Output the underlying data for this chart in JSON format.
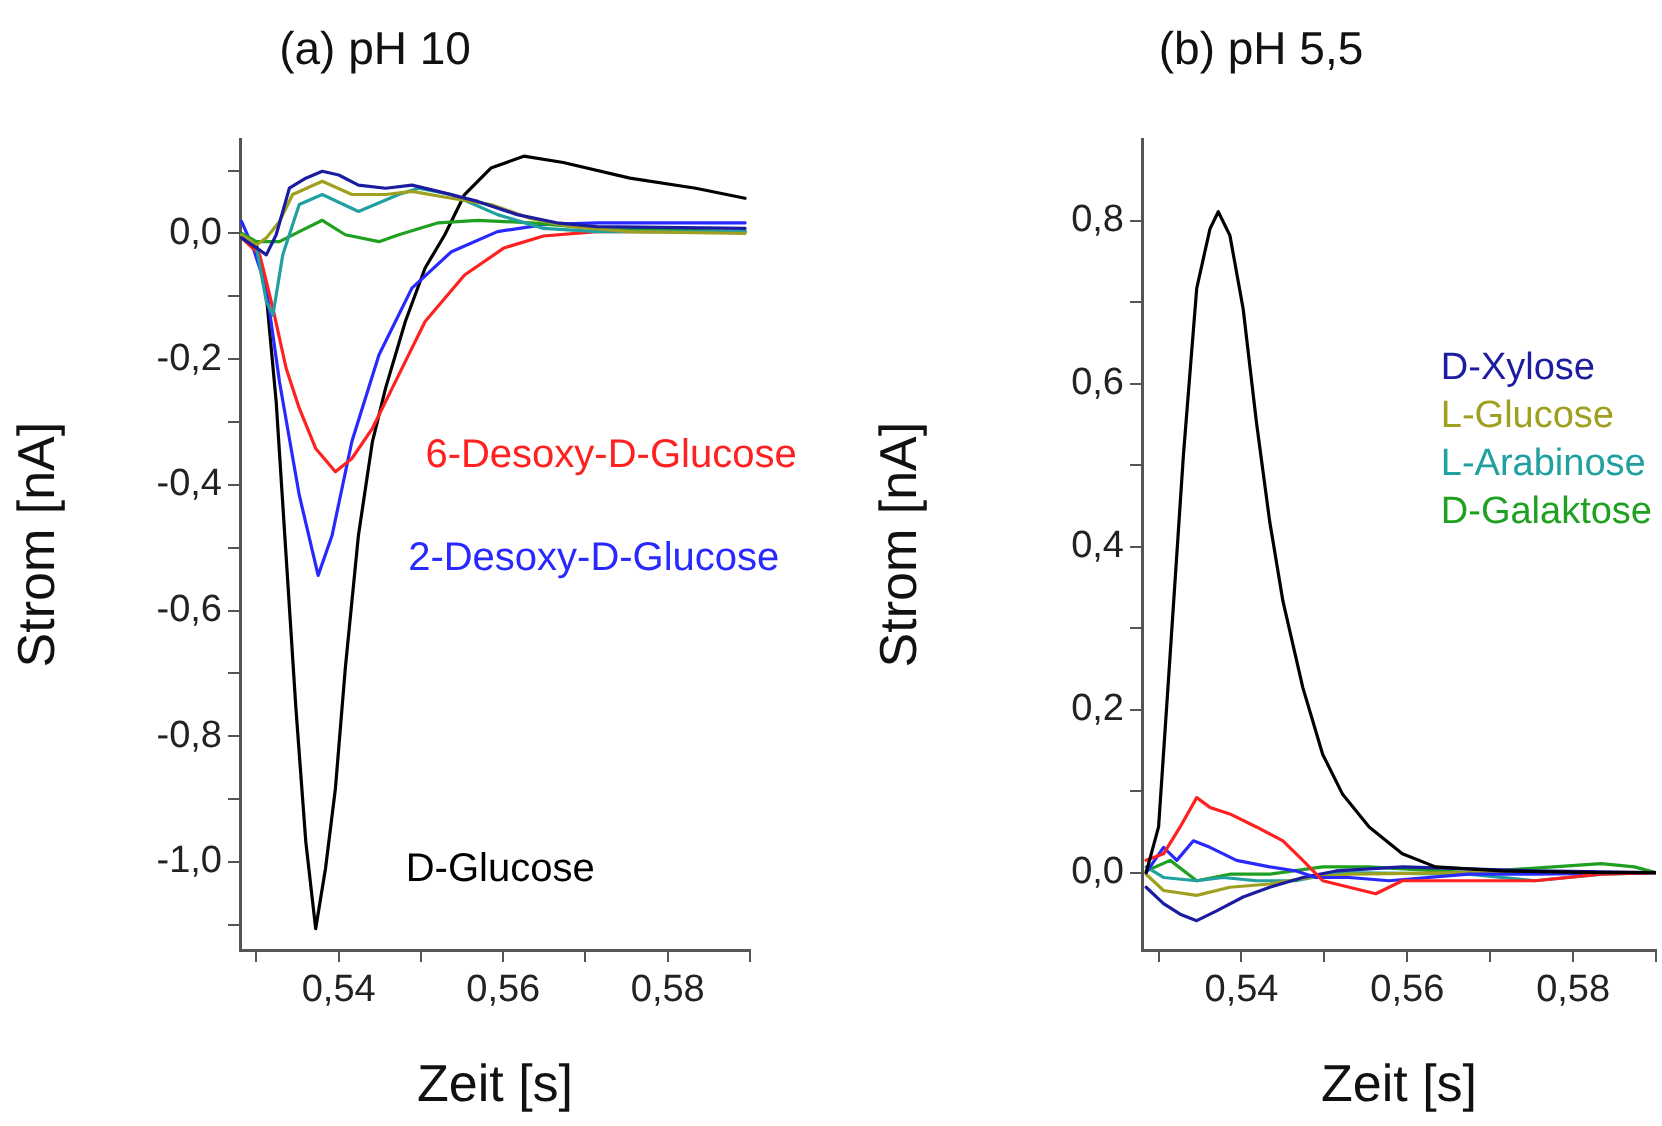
{
  "chart_data": [
    {
      "type": "line",
      "title": "(a) pH 10",
      "xlabel": "Zeit [s]",
      "ylabel": "Strom [nA]",
      "xlim": [
        0.528,
        0.59
      ],
      "xticks": [
        {
          "value": 0.53,
          "label": null
        },
        {
          "value": 0.54,
          "label": "0,54"
        },
        {
          "value": 0.55,
          "label": null
        },
        {
          "value": 0.56,
          "label": "0,56"
        },
        {
          "value": 0.57,
          "label": null
        },
        {
          "value": 0.58,
          "label": "0,58"
        },
        {
          "value": 0.59,
          "label": null
        }
      ],
      "ylim": [
        -1.14,
        0.15
      ],
      "yticks": [
        {
          "value": -1.1,
          "label": null
        },
        {
          "value": -1.0,
          "label": "-1,0"
        },
        {
          "value": -0.9,
          "label": null
        },
        {
          "value": -0.8,
          "label": "-0,8"
        },
        {
          "value": -0.7,
          "label": null
        },
        {
          "value": -0.6,
          "label": "-0,6"
        },
        {
          "value": -0.5,
          "label": null
        },
        {
          "value": -0.4,
          "label": "-0,4"
        },
        {
          "value": -0.3,
          "label": null
        },
        {
          "value": -0.2,
          "label": "-0,2"
        },
        {
          "value": -0.1,
          "label": null
        },
        {
          "value": 0,
          "label": "0,0"
        },
        {
          "value": 0.1,
          "label": null
        }
      ],
      "grid": false,
      "legend": false,
      "marker": "none",
      "line_style": "solid",
      "series": [
        {
          "color": "#1c1ca0",
          "x": [
            0.5282,
            0.53,
            0.5312,
            0.5324,
            0.534,
            0.536,
            0.538,
            0.54,
            0.5424,
            0.5457,
            0.5489,
            0.5521,
            0.5569,
            0.5617,
            0.5665,
            0.5714,
            0.5894
          ],
          "values": [
            -0.007,
            -0.023,
            -0.034,
            -0.002,
            0.072,
            0.088,
            0.099,
            0.093,
            0.077,
            0.072,
            0.077,
            0.067,
            0.051,
            0.03,
            0.017,
            0.011,
            0.008
          ]
        },
        {
          "color": "#a0a020",
          "x": [
            0.5282,
            0.53,
            0.5312,
            0.5328,
            0.5344,
            0.538,
            0.5416,
            0.5457,
            0.5489,
            0.5537,
            0.5585,
            0.5633,
            0.5682,
            0.5754,
            0.5894
          ],
          "values": [
            -0.002,
            -0.018,
            -0.007,
            0.019,
            0.062,
            0.083,
            0.062,
            0.062,
            0.067,
            0.056,
            0.046,
            0.024,
            0.011,
            0.003,
            0
          ]
        },
        {
          "color": "#20a0a0",
          "x": [
            0.5282,
            0.53,
            0.5312,
            0.532,
            0.5332,
            0.5352,
            0.538,
            0.5424,
            0.5473,
            0.5497,
            0.5537,
            0.5593,
            0.5649,
            0.5714,
            0.5894
          ],
          "values": [
            -0.002,
            -0.023,
            -0.108,
            -0.13,
            -0.034,
            0.046,
            0.062,
            0.035,
            0.062,
            0.072,
            0.062,
            0.03,
            0.008,
            0.003,
            0.003
          ]
        },
        {
          "color": "#20a020",
          "x": [
            0.5282,
            0.53,
            0.5328,
            0.5352,
            0.538,
            0.5408,
            0.5449,
            0.5473,
            0.5521,
            0.5569,
            0.5633,
            0.5714,
            0.5894
          ],
          "values": [
            0,
            -0.013,
            -0.013,
            0.003,
            0.021,
            -0.002,
            -0.013,
            -0.002,
            0.017,
            0.021,
            0.017,
            0.008,
            0.003
          ]
        },
        {
          "name": "6-Desoxy-D-Glucose",
          "color": "#ff2020",
          "x": [
            0.5282,
            0.5304,
            0.532,
            0.5336,
            0.5352,
            0.5372,
            0.5396,
            0.5416,
            0.5441,
            0.5473,
            0.5505,
            0.5553,
            0.5601,
            0.5649,
            0.5714,
            0.5894
          ],
          "values": [
            -0.007,
            -0.034,
            -0.119,
            -0.214,
            -0.278,
            -0.342,
            -0.379,
            -0.358,
            -0.31,
            -0.225,
            -0.14,
            -0.066,
            -0.023,
            -0.004,
            0.003,
            0.003
          ]
        },
        {
          "name": "2-Desoxy-D-Glucose",
          "color": "#2828ff",
          "x": [
            0.5282,
            0.5296,
            0.5312,
            0.5328,
            0.5352,
            0.5375,
            0.5392,
            0.5416,
            0.5449,
            0.5489,
            0.5537,
            0.5593,
            0.5649,
            0.5714,
            0.5894
          ],
          "values": [
            0.019,
            -0.023,
            -0.087,
            -0.236,
            -0.416,
            -0.544,
            -0.48,
            -0.331,
            -0.193,
            -0.087,
            -0.029,
            0.003,
            0.014,
            0.017,
            0.017
          ]
        },
        {
          "name": "D-Glucose",
          "color": "#000000",
          "x": [
            0.5282,
            0.53,
            0.5312,
            0.5324,
            0.5336,
            0.5348,
            0.536,
            0.5372,
            0.5384,
            0.5396,
            0.5408,
            0.5424,
            0.5441,
            0.5457,
            0.5481,
            0.5505,
            0.5529,
            0.5553,
            0.5585,
            0.5625,
            0.5673,
            0.5754,
            0.5834,
            0.5894
          ],
          "values": [
            0,
            -0.018,
            -0.098,
            -0.268,
            -0.512,
            -0.756,
            -0.968,
            -1.106,
            -1.01,
            -0.883,
            -0.692,
            -0.48,
            -0.331,
            -0.246,
            -0.14,
            -0.055,
            -0.002,
            0.062,
            0.104,
            0.123,
            0.113,
            0.088,
            0.072,
            0.056
          ]
        }
      ]
    },
    {
      "type": "line",
      "title": "(b) pH 5,5",
      "xlabel": "Zeit [s]",
      "ylabel": "Strom [nA]",
      "xlim": [
        0.528,
        0.59
      ],
      "xticks": [
        {
          "value": 0.53,
          "label": null
        },
        {
          "value": 0.54,
          "label": "0,54"
        },
        {
          "value": 0.55,
          "label": null
        },
        {
          "value": 0.56,
          "label": "0,56"
        },
        {
          "value": 0.57,
          "label": null
        },
        {
          "value": 0.58,
          "label": "0,58"
        },
        {
          "value": 0.59,
          "label": null
        }
      ],
      "ylim": [
        -0.095,
        0.9
      ],
      "yticks": [
        {
          "value": 0,
          "label": "0,0"
        },
        {
          "value": 0.1,
          "label": null
        },
        {
          "value": 0.2,
          "label": "0,2"
        },
        {
          "value": 0.3,
          "label": null
        },
        {
          "value": 0.4,
          "label": "0,4"
        },
        {
          "value": 0.5,
          "label": null
        },
        {
          "value": 0.6,
          "label": "0,6"
        },
        {
          "value": 0.7,
          "label": null
        },
        {
          "value": 0.8,
          "label": "0,8"
        }
      ],
      "grid": false,
      "legend": "right",
      "marker": "none",
      "line_style": "solid",
      "series": [
        {
          "color": "#000000",
          "x": [
            0.5285,
            0.53,
            0.5314,
            0.533,
            0.5346,
            0.5362,
            0.5372,
            0.5386,
            0.5402,
            0.5418,
            0.5434,
            0.545,
            0.5474,
            0.5498,
            0.5522,
            0.5554,
            0.5594,
            0.5634,
            0.5714,
            0.5834,
            0.59
          ],
          "values": [
            0,
            0.056,
            0.268,
            0.513,
            0.717,
            0.79,
            0.811,
            0.782,
            0.692,
            0.553,
            0.431,
            0.333,
            0.227,
            0.145,
            0.096,
            0.056,
            0.023,
            0.007,
            0.002,
            0,
            0
          ]
        },
        {
          "color": "#ff2020",
          "x": [
            0.5285,
            0.5306,
            0.5326,
            0.5346,
            0.5362,
            0.5386,
            0.5418,
            0.545,
            0.5474,
            0.5498,
            0.553,
            0.5562,
            0.5594,
            0.5674,
            0.5754,
            0.5834,
            0.59
          ],
          "values": [
            0.015,
            0.023,
            0.056,
            0.092,
            0.08,
            0.072,
            0.056,
            0.039,
            0.015,
            -0.01,
            -0.018,
            -0.026,
            -0.01,
            -0.01,
            -0.01,
            -0.002,
            0
          ]
        },
        {
          "color": "#2828ff",
          "x": [
            0.5285,
            0.5306,
            0.5322,
            0.5342,
            0.5362,
            0.5394,
            0.5434,
            0.5466,
            0.549,
            0.553,
            0.5578,
            0.5674,
            0.5754,
            0.59
          ],
          "values": [
            0,
            0.031,
            0.015,
            0.039,
            0.031,
            0.015,
            0.007,
            0.002,
            -0.006,
            -0.006,
            -0.01,
            -0.002,
            -0.002,
            0
          ]
        },
        {
          "name": "D-Xylose",
          "color": "#1c1ca0",
          "x": [
            0.5285,
            0.5306,
            0.5326,
            0.5346,
            0.537,
            0.5402,
            0.5434,
            0.5474,
            0.5514,
            0.5594,
            0.5754,
            0.59
          ],
          "values": [
            -0.018,
            -0.038,
            -0.051,
            -0.059,
            -0.047,
            -0.03,
            -0.018,
            -0.006,
            0.002,
            0.007,
            0.002,
            0
          ]
        },
        {
          "name": "L-Glucose",
          "color": "#a0a020",
          "x": [
            0.5285,
            0.5306,
            0.5346,
            0.5386,
            0.5434,
            0.5482,
            0.553,
            0.5674,
            0.59
          ],
          "values": [
            -0.002,
            -0.022,
            -0.028,
            -0.018,
            -0.014,
            -0.006,
            -0.002,
            0,
            0
          ]
        },
        {
          "name": "L-Arabinose",
          "color": "#20a0a0",
          "x": [
            0.5285,
            0.5306,
            0.5346,
            0.5378,
            0.5418,
            0.5466,
            0.5514,
            0.5674,
            0.5754,
            0.5834,
            0.59
          ],
          "values": [
            0.007,
            -0.006,
            -0.01,
            -0.006,
            -0.01,
            -0.01,
            0,
            -0.002,
            -0.01,
            -0.002,
            0
          ]
        },
        {
          "name": "D-Galaktose",
          "color": "#20a020",
          "x": [
            0.5285,
            0.5314,
            0.5346,
            0.5386,
            0.5434,
            0.5498,
            0.5554,
            0.5674,
            0.5834,
            0.5874,
            0.59
          ],
          "values": [
            0.002,
            0.015,
            -0.01,
            -0.002,
            -0.002,
            0.007,
            0.007,
            0,
            0.011,
            0.007,
            0
          ]
        }
      ]
    }
  ]
}
